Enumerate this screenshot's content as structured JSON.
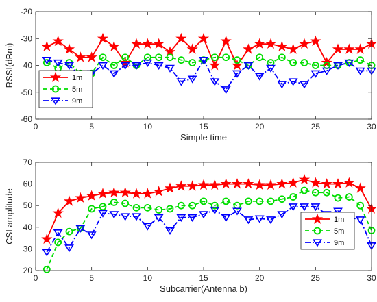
{
  "chart_data": [
    {
      "type": "line",
      "xlabel": "Simple time",
      "ylabel": "RSSI(dBm)",
      "xlim": [
        0,
        30
      ],
      "ylim": [
        -60,
        -20
      ],
      "xticks": [
        0,
        5,
        10,
        15,
        20,
        25,
        30
      ],
      "yticks": [
        -60,
        -50,
        -40,
        -30,
        -20
      ],
      "legend_position": "bottom-left",
      "grid": false,
      "x": [
        1,
        2,
        3,
        4,
        5,
        6,
        7,
        8,
        9,
        10,
        11,
        12,
        13,
        14,
        15,
        16,
        17,
        18,
        19,
        20,
        21,
        22,
        23,
        24,
        25,
        26,
        27,
        28,
        29,
        30
      ],
      "series": [
        {
          "name": "1m",
          "color": "#ff0000",
          "linestyle": "solid",
          "marker": "star",
          "values": [
            -33,
            -31,
            -34,
            -37,
            -37,
            -30,
            -33,
            -39,
            -32,
            -32,
            -32,
            -35,
            -30,
            -34,
            -30,
            -40,
            -31,
            -40,
            -34,
            -32,
            -32,
            -33,
            -34,
            -32,
            -31,
            -39,
            -34,
            -34,
            -34,
            -32
          ]
        },
        {
          "name": "5m",
          "color": "#00dd00",
          "linestyle": "dashed",
          "marker": "circle",
          "values": [
            -39,
            -41,
            -39,
            -43,
            -43,
            -37,
            -40,
            -37,
            -40,
            -37,
            -37,
            -37,
            -38,
            -39,
            -38,
            -37,
            -37,
            -38,
            -40,
            -37,
            -39,
            -37,
            -39,
            -39,
            -40,
            -40,
            -40,
            -39,
            -38,
            -40
          ]
        },
        {
          "name": "9m",
          "color": "#0000ff",
          "linestyle": "dashdot",
          "marker": "triangle-down",
          "values": [
            -38,
            -39,
            -40,
            -44,
            -43,
            -40,
            -43,
            -40,
            -40,
            -39,
            -40,
            -41,
            -46,
            -45,
            -38,
            -46,
            -49,
            -43,
            -40,
            -44,
            -41,
            -47,
            -46,
            -47,
            -43,
            -42,
            -40,
            -39,
            -42,
            -42
          ]
        }
      ]
    },
    {
      "type": "line",
      "xlabel": "Subcarrier(Antenna b)",
      "ylabel": "CSI amplitude",
      "xlim": [
        0,
        30
      ],
      "ylim": [
        20,
        70
      ],
      "xticks": [
        0,
        5,
        10,
        15,
        20,
        25,
        30
      ],
      "yticks": [
        20,
        30,
        40,
        50,
        60,
        70
      ],
      "legend_position": "bottom-right",
      "grid": false,
      "x": [
        1,
        2,
        3,
        4,
        5,
        6,
        7,
        8,
        9,
        10,
        11,
        12,
        13,
        14,
        15,
        16,
        17,
        18,
        19,
        20,
        21,
        22,
        23,
        24,
        25,
        26,
        27,
        28,
        29,
        30
      ],
      "series": [
        {
          "name": "1m",
          "color": "#ff0000",
          "linestyle": "solid",
          "marker": "star",
          "values": [
            34.5,
            46.5,
            52,
            53.5,
            54.5,
            55.5,
            56,
            56,
            55.5,
            55.5,
            56.5,
            58,
            59,
            59,
            59.5,
            59.5,
            60,
            60,
            60,
            59.5,
            59.5,
            60,
            60.5,
            62,
            60.5,
            60,
            60,
            60.5,
            58,
            48.5
          ]
        },
        {
          "name": "5m",
          "color": "#00dd00",
          "linestyle": "dashed",
          "marker": "circle",
          "values": [
            20.5,
            33,
            38,
            39.5,
            48.5,
            49.5,
            51.5,
            51,
            49,
            49,
            48,
            48.5,
            50,
            50,
            52,
            50,
            52,
            50,
            52,
            52,
            52,
            53,
            54,
            57,
            56,
            56,
            53.5,
            54,
            50,
            38.5
          ]
        },
        {
          "name": "9m",
          "color": "#0000ff",
          "linestyle": "dashdot",
          "marker": "triangle-down",
          "values": [
            28.5,
            37.5,
            30.5,
            39.5,
            36.5,
            46.5,
            46,
            45,
            45,
            40.5,
            44.5,
            38.5,
            44.5,
            44.5,
            46,
            48,
            44.5,
            47.5,
            43.5,
            44,
            43.5,
            46,
            49.5,
            49.5,
            49.5,
            46,
            47.5,
            44.5,
            43.5,
            31.5
          ]
        }
      ]
    }
  ]
}
